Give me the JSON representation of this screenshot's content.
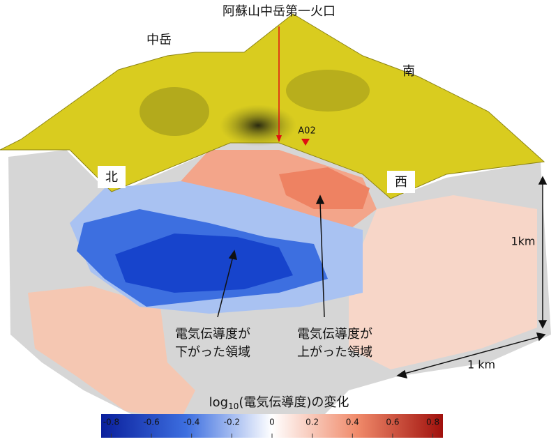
{
  "title": "阿蘇山中岳第一火口",
  "labels": {
    "nakadake": "中岳",
    "south": "南",
    "north": "北",
    "west": "西",
    "station": "A02",
    "depth_scale": "1km",
    "horizontal_scale": "1 km"
  },
  "annotations": [
    {
      "lines": [
        "電気伝導度が",
        "下がった領域"
      ]
    },
    {
      "lines": [
        "電気伝導度が",
        "上がった領域"
      ]
    }
  ],
  "colorbar": {
    "title_parts": [
      "log",
      "10",
      "(電気伝導度)の変化"
    ],
    "lim": [
      -0.85,
      0.85
    ],
    "ticks": [
      -0.8,
      -0.6,
      -0.4,
      -0.2,
      0,
      0.2,
      0.4,
      0.6,
      0.8
    ]
  }
}
